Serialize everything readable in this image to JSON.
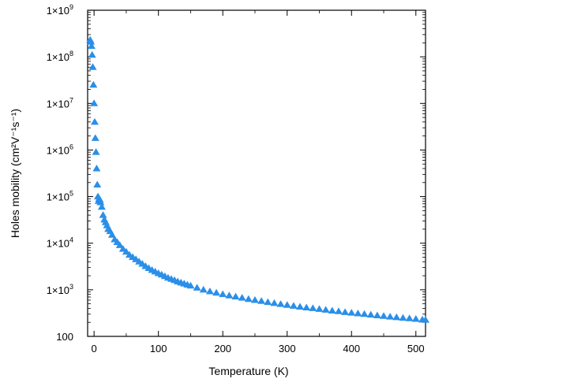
{
  "chart_data": {
    "type": "scatter",
    "title": "",
    "xlabel": "Temperature (K)",
    "ylabel": "Holes mobility (cm²V⁻¹s⁻¹)",
    "xlim": [
      -10,
      515
    ],
    "ylim_log10": [
      2,
      9
    ],
    "y_scale": "log",
    "grid": false,
    "legend": "none",
    "x_ticks": [
      {
        "value": 0,
        "label": "0"
      },
      {
        "value": 100,
        "label": "100"
      },
      {
        "value": 200,
        "label": "200"
      },
      {
        "value": 300,
        "label": "300"
      },
      {
        "value": 400,
        "label": "400"
      },
      {
        "value": 500,
        "label": "500"
      }
    ],
    "y_ticks": [
      {
        "exp": 2,
        "label": "100"
      },
      {
        "exp": 3,
        "label": "1×10",
        "sup": "3"
      },
      {
        "exp": 4,
        "label": "1×10",
        "sup": "4"
      },
      {
        "exp": 5,
        "label": "1×10",
        "sup": "5"
      },
      {
        "exp": 6,
        "label": "1×10",
        "sup": "6"
      },
      {
        "exp": 7,
        "label": "1×10",
        "sup": "7"
      },
      {
        "exp": 8,
        "label": "1×10",
        "sup": "8"
      },
      {
        "exp": 9,
        "label": "1×10",
        "sup": "9"
      }
    ],
    "series": [
      {
        "color": "#2a8fe8",
        "marker": "triangle",
        "points": [
          [
            -6,
            230000000
          ],
          [
            -5,
            210000000
          ],
          [
            -4,
            170000000
          ],
          [
            -3,
            110000000
          ],
          [
            -2,
            60000000
          ],
          [
            -1,
            25000000
          ],
          [
            0,
            10000000
          ],
          [
            1,
            4000000
          ],
          [
            2,
            1800000
          ],
          [
            3,
            900000
          ],
          [
            4,
            400000
          ],
          [
            5,
            180000
          ],
          [
            6,
            100000
          ],
          [
            7,
            80000
          ],
          [
            8,
            90000
          ],
          [
            9,
            85000
          ],
          [
            10,
            75000
          ],
          [
            12,
            60000
          ],
          [
            14,
            40000
          ],
          [
            16,
            32000
          ],
          [
            18,
            28000
          ],
          [
            20,
            24000
          ],
          [
            22,
            20000
          ],
          [
            25,
            18000
          ],
          [
            28,
            15000
          ],
          [
            32,
            12000
          ],
          [
            36,
            10500
          ],
          [
            40,
            9000
          ],
          [
            45,
            7500
          ],
          [
            50,
            6500
          ],
          [
            55,
            5600
          ],
          [
            60,
            5000
          ],
          [
            65,
            4500
          ],
          [
            70,
            4000
          ],
          [
            75,
            3600
          ],
          [
            80,
            3200
          ],
          [
            85,
            2900
          ],
          [
            90,
            2650
          ],
          [
            95,
            2450
          ],
          [
            100,
            2250
          ],
          [
            105,
            2100
          ],
          [
            110,
            1950
          ],
          [
            115,
            1800
          ],
          [
            120,
            1700
          ],
          [
            125,
            1600
          ],
          [
            130,
            1500
          ],
          [
            135,
            1420
          ],
          [
            140,
            1350
          ],
          [
            145,
            1280
          ],
          [
            150,
            1220
          ],
          [
            160,
            1100
          ],
          [
            170,
            1000
          ],
          [
            180,
            920
          ],
          [
            190,
            860
          ],
          [
            200,
            800
          ],
          [
            210,
            750
          ],
          [
            220,
            710
          ],
          [
            230,
            670
          ],
          [
            240,
            630
          ],
          [
            250,
            600
          ],
          [
            260,
            570
          ],
          [
            270,
            540
          ],
          [
            280,
            515
          ],
          [
            290,
            490
          ],
          [
            300,
            470
          ],
          [
            310,
            450
          ],
          [
            320,
            430
          ],
          [
            330,
            415
          ],
          [
            340,
            400
          ],
          [
            350,
            385
          ],
          [
            360,
            370
          ],
          [
            370,
            355
          ],
          [
            380,
            345
          ],
          [
            390,
            330
          ],
          [
            400,
            320
          ],
          [
            410,
            310
          ],
          [
            420,
            300
          ],
          [
            430,
            290
          ],
          [
            440,
            280
          ],
          [
            450,
            272
          ],
          [
            460,
            264
          ],
          [
            470,
            256
          ],
          [
            480,
            248
          ],
          [
            490,
            242
          ],
          [
            500,
            235
          ],
          [
            510,
            228
          ],
          [
            515,
            225
          ]
        ]
      }
    ]
  }
}
